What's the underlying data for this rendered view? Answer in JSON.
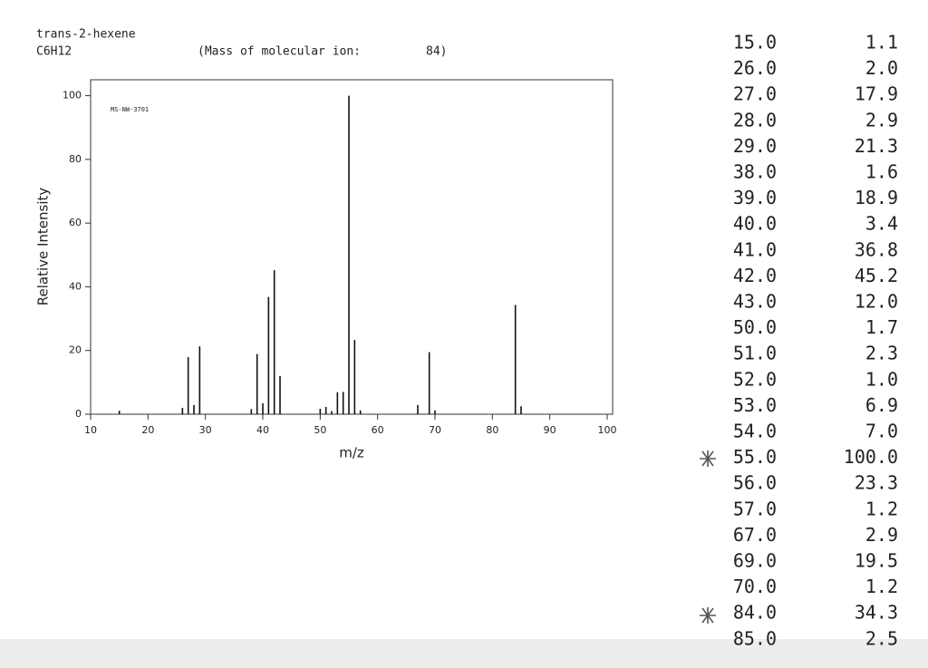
{
  "compound": "trans-2-hexene",
  "formula": "C6H12",
  "molecular_ion_label": "(Mass of molecular ion:",
  "molecular_ion": "84)",
  "chart_data": {
    "type": "bar",
    "annotation": "MS-NW-3701",
    "xlabel": "m/z",
    "ylabel": "Relative Intensity",
    "x": [
      15,
      26,
      27,
      28,
      29,
      38,
      39,
      40,
      41,
      42,
      43,
      50,
      51,
      52,
      53,
      54,
      55,
      56,
      57,
      67,
      69,
      70,
      84,
      85
    ],
    "x_labels": [
      "15.0",
      "26.0",
      "27.0",
      "28.0",
      "29.0",
      "38.0",
      "39.0",
      "40.0",
      "41.0",
      "42.0",
      "43.0",
      "50.0",
      "51.0",
      "52.0",
      "53.0",
      "54.0",
      "55.0",
      "56.0",
      "57.0",
      "67.0",
      "69.0",
      "70.0",
      "84.0",
      "85.0"
    ],
    "values": [
      1.1,
      2.0,
      17.9,
      2.9,
      21.3,
      1.6,
      18.9,
      3.4,
      36.8,
      45.2,
      12.0,
      1.7,
      2.3,
      1.0,
      6.9,
      7.0,
      100.0,
      23.3,
      1.2,
      2.9,
      19.5,
      1.2,
      34.3,
      2.5
    ],
    "value_labels": [
      "1.1",
      "2.0",
      "17.9",
      "2.9",
      "21.3",
      "1.6",
      "18.9",
      "3.4",
      "36.8",
      "45.2",
      "12.0",
      "1.7",
      "2.3",
      "1.0",
      "6.9",
      "7.0",
      "100.0",
      "23.3",
      "1.2",
      "2.9",
      "19.5",
      "1.2",
      "34.3",
      "2.5"
    ],
    "color": "#111111",
    "xlim": [
      10,
      100
    ],
    "xticks": [
      10,
      20,
      30,
      40,
      50,
      60,
      70,
      80,
      90,
      100
    ],
    "ylim": [
      0,
      105
    ],
    "yticks": [
      0,
      20,
      40,
      60,
      80,
      100
    ]
  }
}
